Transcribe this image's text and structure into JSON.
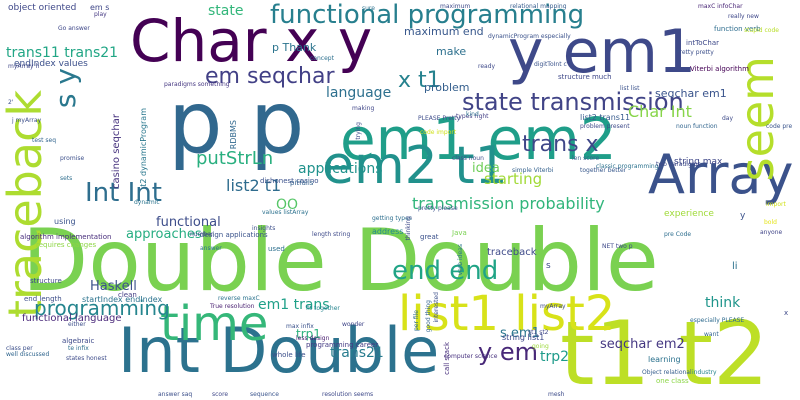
{
  "words": [
    {
      "text": "Double Double",
      "color": "#7ad151"
    },
    {
      "text": "t1 t2",
      "color": "#bddf26"
    },
    {
      "text": "p p",
      "color": "#31688e"
    },
    {
      "text": "Int Double",
      "color": "#2c728e"
    },
    {
      "text": "Char x y",
      "color": "#440154"
    },
    {
      "text": "y em1",
      "color": "#3e4989"
    },
    {
      "text": "em1 em2",
      "color": "#1f9e89"
    },
    {
      "text": "em2 t1",
      "color": "#21918c"
    },
    {
      "text": "list1 list2",
      "color": "#d8e219"
    },
    {
      "text": "Array",
      "color": "#3b528b"
    },
    {
      "text": "time",
      "color": "#35b779"
    },
    {
      "text": "traceback",
      "color": "#addc30"
    },
    {
      "text": "seem",
      "color": "#b5de2b"
    },
    {
      "text": "functional programming",
      "color": "#277f8e"
    },
    {
      "text": "state transmission",
      "color": "#414487"
    },
    {
      "text": "em seqchar",
      "color": "#424086"
    },
    {
      "text": "Int Int",
      "color": "#2e6e8e"
    },
    {
      "text": "end end",
      "color": "#20a486"
    },
    {
      "text": "trans x",
      "color": "#3f4788"
    },
    {
      "text": "transmission probability",
      "color": "#31b57b"
    },
    {
      "text": "programming",
      "color": "#25858e"
    },
    {
      "text": "y em",
      "color": "#482878"
    },
    {
      "text": "trans21",
      "color": "#287c8e"
    },
    {
      "text": "x t1",
      "color": "#26828e"
    },
    {
      "text": "s y",
      "color": "#2a788e"
    },
    {
      "text": "putStrLn",
      "color": "#29af7f"
    },
    {
      "text": "list2 t1",
      "color": "#2f6c8e"
    },
    {
      "text": "applications",
      "color": "#20928c"
    },
    {
      "text": "language",
      "color": "#2d708e"
    },
    {
      "text": "starting",
      "color": "#a2da37"
    },
    {
      "text": "Char Int",
      "color": "#87d549"
    },
    {
      "text": "state",
      "color": "#32b67a"
    },
    {
      "text": "trans11 trans21",
      "color": "#21a685"
    },
    {
      "text": "functional",
      "color": "#3d4d8a"
    },
    {
      "text": "approaches",
      "color": "#26ad81"
    },
    {
      "text": "em1 trans",
      "color": "#1fa088"
    },
    {
      "text": "trp1",
      "color": "#2db27d"
    },
    {
      "text": "trp2",
      "color": "#1e9b8a"
    },
    {
      "text": "think",
      "color": "#1f958b"
    },
    {
      "text": "OO",
      "color": "#56c667"
    },
    {
      "text": "idea",
      "color": "#6ece58"
    },
    {
      "text": "Haskell",
      "color": "#3b528b"
    },
    {
      "text": "s em1",
      "color": "#2a768e"
    },
    {
      "text": "seqchar em2",
      "color": "#453882"
    },
    {
      "text": "seqchar em1",
      "color": "#3a548c"
    },
    {
      "text": "make",
      "color": "#2d708e"
    },
    {
      "text": "problem",
      "color": "#355f8d"
    },
    {
      "text": "p Thank",
      "color": "#2b748e"
    },
    {
      "text": "maximum end",
      "color": "#38588c"
    },
    {
      "text": "object oriented",
      "color": "#3f4889"
    },
    {
      "text": "traceback",
      "color": "#3e4a89"
    },
    {
      "text": "casino seqchar",
      "color": "#46327e"
    },
    {
      "text": "t2 dynamicProgram",
      "color": "#2a788e"
    },
    {
      "text": "endIndex values",
      "color": "#3c508b"
    },
    {
      "text": "RDBMS",
      "color": "#31688e"
    },
    {
      "text": "dishonest casino",
      "color": "#3b518b"
    },
    {
      "text": "values listArray",
      "color": "#2c718e"
    },
    {
      "text": "design applications",
      "color": "#3a538b"
    },
    {
      "text": "algorithm implementation",
      "color": "#472d7b"
    },
    {
      "text": "requires changes",
      "color": "#8ed645"
    },
    {
      "text": "startIndex endIndex",
      "color": "#2c738e"
    },
    {
      "text": "functional language",
      "color": "#4b2a7b"
    },
    {
      "text": "end length",
      "color": "#3d4e8a"
    },
    {
      "text": "programming career",
      "color": "#443a83"
    },
    {
      "text": "string list1",
      "color": "#3e4989"
    },
    {
      "text": "learning",
      "color": "#2c728e"
    },
    {
      "text": "one class",
      "color": "#8bd646"
    },
    {
      "text": "industry",
      "color": "#25848e"
    },
    {
      "text": "Object relational",
      "color": "#365d8d"
    },
    {
      "text": "string max",
      "color": "#3f4788"
    },
    {
      "text": "classic programming",
      "color": "#2c728e"
    },
    {
      "text": "simple Viterbi",
      "color": "#34608d"
    },
    {
      "text": "call stack",
      "color": "#472e7c"
    },
    {
      "text": "address",
      "color": "#23898e"
    },
    {
      "text": "Java",
      "color": "#7ad151"
    },
    {
      "text": "great",
      "color": "#3b518b"
    },
    {
      "text": "less design",
      "color": "#481d6f"
    },
    {
      "text": "max infix",
      "color": "#3b528b"
    },
    {
      "text": "whole life",
      "color": "#3c4f8a"
    },
    {
      "text": "pitfalls",
      "color": "#34618d"
    },
    {
      "text": "getting types",
      "color": "#2e6f8e"
    },
    {
      "text": "computer science",
      "color": "#46307e"
    },
    {
      "text": "intToChar",
      "color": "#3e4989"
    },
    {
      "text": "structure much",
      "color": "#3f4889"
    },
    {
      "text": "experience",
      "color": "#a0da39"
    },
    {
      "text": "paradigms something",
      "color": "#453781"
    },
    {
      "text": "relational mapping",
      "color": "#365c8d"
    },
    {
      "text": "dynamicProgram especially",
      "color": "#3b528b"
    },
    {
      "text": "function verb",
      "color": "#2e6d8e"
    },
    {
      "text": "Viterbi algorithm",
      "color": "#440154"
    },
    {
      "text": "Pretty pretty",
      "color": "#3c4f8a"
    },
    {
      "text": "really new",
      "color": "#3f4889"
    },
    {
      "text": "stupid code",
      "color": "#b8de29"
    },
    {
      "text": "maxC infoChar",
      "color": "#482576"
    },
    {
      "text": "digitToInt c",
      "color": "#3a538b"
    },
    {
      "text": "types right",
      "color": "#433e85"
    },
    {
      "text": "PLEASE Pretty",
      "color": "#3e4c8a"
    },
    {
      "text": "code import",
      "color": "#d0e11c"
    },
    {
      "text": "list2 trans11",
      "color": "#375b8d"
    },
    {
      "text": "noun function",
      "color": "#32658e"
    },
    {
      "text": "problem present",
      "color": "#3e4a89"
    },
    {
      "text": "len score",
      "color": "#355e8d"
    },
    {
      "text": "two paradigms",
      "color": "#3e4a89"
    },
    {
      "text": "together better",
      "color": "#38588c"
    },
    {
      "text": "class noun",
      "color": "#3d4d8a"
    },
    {
      "text": "verb ideas",
      "color": "#2b758e"
    },
    {
      "text": "pretty please",
      "color": "#3b528b"
    },
    {
      "text": "length string",
      "color": "#3e4a89"
    },
    {
      "text": "insights",
      "color": "#3c4f8a"
    },
    {
      "text": "number",
      "color": "#3e4989"
    },
    {
      "text": "answer",
      "color": "#2c728e"
    },
    {
      "text": "used",
      "color": "#2d708e"
    },
    {
      "text": "clean",
      "color": "#433d84"
    },
    {
      "text": "reverse maxC",
      "color": "#2c738e"
    },
    {
      "text": "True resolution",
      "color": "#481f70"
    },
    {
      "text": "fit together",
      "color": "#25848e"
    },
    {
      "text": "wonder",
      "color": "#404688"
    },
    {
      "text": "either",
      "color": "#3d4e8a"
    },
    {
      "text": "algebraic",
      "color": "#3e4a89"
    },
    {
      "text": "te infix",
      "color": "#2e6e8e"
    },
    {
      "text": "states honest",
      "color": "#3e4c8a"
    },
    {
      "text": "class per",
      "color": "#3c4f8a"
    },
    {
      "text": "well discussed",
      "color": "#31668e"
    },
    {
      "text": "sequence",
      "color": "#3a548c"
    },
    {
      "text": "score",
      "color": "#3f4788"
    },
    {
      "text": "answer saq",
      "color": "#3c4f8a"
    },
    {
      "text": "resolution seems",
      "color": "#3e4989"
    },
    {
      "text": "mesh",
      "color": "#3e4c8a"
    },
    {
      "text": "want",
      "color": "#32648e"
    },
    {
      "text": "especially PLEASE",
      "color": "#2f6b8e"
    },
    {
      "text": "pre Code",
      "color": "#2e6e8e"
    },
    {
      "text": "anyone",
      "color": "#404588"
    },
    {
      "text": "bold",
      "color": "#e5e419"
    },
    {
      "text": "st1 st2",
      "color": "#3f4788"
    },
    {
      "text": "myArray",
      "color": "#3e4989"
    },
    {
      "text": "going",
      "color": "#9dd93b"
    },
    {
      "text": "maximum",
      "color": "#3e4a89"
    },
    {
      "text": "concept",
      "color": "#2d708e"
    },
    {
      "text": "sure",
      "color": "#2c728e"
    },
    {
      "text": "play",
      "color": "#453882"
    },
    {
      "text": "Go answer",
      "color": "#3f4889"
    },
    {
      "text": "test seq",
      "color": "#32658e"
    },
    {
      "text": "promise",
      "color": "#3c4f8a"
    },
    {
      "text": "sets",
      "color": "#2e6e8e"
    },
    {
      "text": "dynamic",
      "color": "#2b748e"
    },
    {
      "text": "code pre",
      "color": "#3a548c"
    },
    {
      "text": "day",
      "color": "#3e4a89"
    },
    {
      "text": "kind",
      "color": "#2d708e"
    },
    {
      "text": "ready",
      "color": "#3e4989"
    },
    {
      "text": "list list",
      "color": "#3b528b"
    },
    {
      "text": "making",
      "color": "#404688"
    },
    {
      "text": "trying",
      "color": "#3e4c8a"
    },
    {
      "text": "thinking",
      "color": "#3e4a89"
    },
    {
      "text": "interested",
      "color": "#3c4f8a"
    },
    {
      "text": "good thing",
      "color": "#32648e"
    },
    {
      "text": "per file",
      "color": "#2f6b8e"
    },
    {
      "text": "using",
      "color": "#3a538b"
    },
    {
      "text": "structure",
      "color": "#3e4a89"
    },
    {
      "text": "em s",
      "color": "#3f4788"
    },
    {
      "text": "NET two p",
      "color": "#3e4989"
    },
    {
      "text": "li",
      "color": "#2c728e"
    },
    {
      "text": "x",
      "color": "#3e4a89"
    },
    {
      "text": "import",
      "color": "#d0e11c"
    },
    {
      "text": "s",
      "color": "#3e4989"
    },
    {
      "text": "y",
      "color": "#3b528b"
    },
    {
      "text": "j myArray",
      "color": "#3c4f8a"
    },
    {
      "text": "myArray h",
      "color": "#3f4788"
    },
    {
      "text": "2'",
      "color": "#3c4f8a"
    }
  ]
}
